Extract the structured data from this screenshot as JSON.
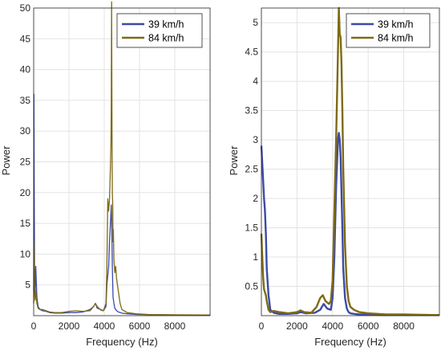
{
  "chart_data": [
    {
      "type": "line",
      "xlabel": "Frequency (Hz)",
      "ylabel": "Power",
      "xlim": [
        0,
        10000
      ],
      "ylim": [
        0,
        50
      ],
      "xticks": [
        0,
        2000,
        4000,
        6000,
        8000
      ],
      "yticks": [
        5,
        10,
        15,
        20,
        25,
        30,
        35,
        40,
        45,
        50
      ],
      "xtick_labels": [
        "0",
        "2000",
        "4000",
        "6000",
        "8000"
      ],
      "ytick_labels": [
        "5",
        "10",
        "15",
        "20",
        "25",
        "30",
        "35",
        "40",
        "45",
        "50"
      ],
      "grid": true,
      "legend_position": "top-right",
      "series": [
        {
          "name": "39 km/h",
          "color": "#3d4aa6",
          "x": [
            0,
            15,
            30,
            50,
            80,
            120,
            180,
            250,
            350,
            500,
            700,
            900,
            1200,
            1600,
            2000,
            2400,
            2800,
            3200,
            3400,
            3500,
            3600,
            3800,
            3950,
            4100,
            4150,
            4250,
            4300,
            4350,
            4400,
            4420,
            4440,
            4460,
            4480,
            4500,
            4550,
            4600,
            4700,
            4800,
            5000,
            5300,
            5800,
            6500,
            8000,
            10000
          ],
          "y": [
            4,
            36,
            20,
            8,
            3,
            8,
            3,
            1.5,
            1,
            0.8,
            0.7,
            0.5,
            0.4,
            0.4,
            0.5,
            0.5,
            0.6,
            1,
            1.5,
            2,
            1.2,
            1,
            0.8,
            1.5,
            5,
            8,
            12,
            15,
            18,
            16,
            12,
            8,
            5,
            3,
            2,
            1.2,
            0.8,
            0.6,
            0.4,
            0.3,
            0.2,
            0.15,
            0.1,
            0.05
          ]
        },
        {
          "name": "84 km/h",
          "color": "#7e6a14",
          "x": [
            0,
            15,
            30,
            50,
            80,
            120,
            180,
            250,
            350,
            500,
            700,
            900,
            1200,
            1600,
            2000,
            2400,
            2800,
            3200,
            3400,
            3500,
            3600,
            3800,
            3950,
            4100,
            4150,
            4200,
            4250,
            4300,
            4350,
            4380,
            4400,
            4420,
            4440,
            4460,
            4480,
            4500,
            4520,
            4550,
            4600,
            4650,
            4700,
            4750,
            4800,
            4900,
            5000,
            5300,
            5800,
            6500,
            8000,
            10000
          ],
          "y": [
            2,
            12,
            10,
            4,
            2.5,
            4,
            2,
            1.2,
            1,
            1,
            0.8,
            0.6,
            0.5,
            0.5,
            0.7,
            0.8,
            0.7,
            0.8,
            1.5,
            2,
            1.5,
            0.9,
            0.8,
            2,
            8,
            19,
            17,
            19,
            24,
            28,
            35,
            51,
            30,
            20,
            18,
            12,
            14,
            9,
            7,
            8,
            6,
            5,
            4,
            2,
            1,
            0.5,
            0.3,
            0.2,
            0.15,
            0.1
          ]
        }
      ]
    },
    {
      "type": "line",
      "xlabel": "Frequency (Hz)",
      "ylabel": "Power",
      "xlim": [
        0,
        10000
      ],
      "ylim": [
        0,
        5.25
      ],
      "xticks": [
        0,
        2000,
        4000,
        6000,
        8000
      ],
      "yticks": [
        0.5,
        1,
        1.5,
        2,
        2.5,
        3,
        3.5,
        4,
        4.5,
        5
      ],
      "xtick_labels": [
        "0",
        "2000",
        "4000",
        "6000",
        "8000"
      ],
      "ytick_labels": [
        "0.5",
        "1",
        "1.5",
        "2",
        "2.5",
        "3",
        "3.5",
        "4",
        "4.5",
        "5"
      ],
      "grid": true,
      "legend_position": "top-right",
      "series": [
        {
          "name": "39 km/h",
          "color": "#3d4aa6",
          "x": [
            0,
            50,
            100,
            150,
            200,
            250,
            300,
            400,
            500,
            700,
            1000,
            1500,
            2000,
            2200,
            2500,
            3000,
            3300,
            3500,
            3700,
            3900,
            4000,
            4100,
            4200,
            4300,
            4350,
            4400,
            4450,
            4500,
            4550,
            4600,
            4700,
            4800,
            4900,
            5000,
            5200,
            5500,
            6000,
            7000,
            8000,
            10000
          ],
          "y": [
            2.9,
            2.6,
            2.3,
            2.0,
            1.8,
            1.4,
            0.8,
            0.35,
            0.1,
            0.05,
            0.03,
            0.03,
            0.04,
            0.06,
            0.04,
            0.05,
            0.1,
            0.2,
            0.12,
            0.1,
            0.3,
            1.0,
            2.2,
            3.0,
            3.12,
            3.0,
            2.7,
            2.1,
            1.5,
            0.8,
            0.3,
            0.12,
            0.06,
            0.04,
            0.03,
            0.02,
            0.02,
            0.01,
            0.01,
            0.01
          ]
        },
        {
          "name": "84 km/h",
          "color": "#7e6a14",
          "x": [
            0,
            50,
            100,
            150,
            200,
            250,
            300,
            400,
            500,
            700,
            1000,
            1500,
            2000,
            2200,
            2400,
            2800,
            3100,
            3300,
            3450,
            3600,
            3800,
            3900,
            4000,
            4100,
            4200,
            4300,
            4350,
            4400,
            4450,
            4500,
            4550,
            4600,
            4700,
            4800,
            4900,
            5000,
            5200,
            5500,
            6000,
            7000,
            8000,
            10000
          ],
          "y": [
            1.4,
            1.0,
            0.65,
            0.45,
            0.4,
            0.35,
            0.25,
            0.1,
            0.06,
            0.08,
            0.06,
            0.04,
            0.06,
            0.09,
            0.06,
            0.05,
            0.15,
            0.3,
            0.35,
            0.25,
            0.2,
            0.25,
            0.6,
            1.8,
            3.0,
            4.5,
            5.25,
            4.8,
            4.75,
            4.3,
            3.5,
            2.5,
            1.2,
            0.5,
            0.25,
            0.15,
            0.1,
            0.06,
            0.04,
            0.02,
            0.02,
            0.01
          ]
        }
      ]
    }
  ]
}
